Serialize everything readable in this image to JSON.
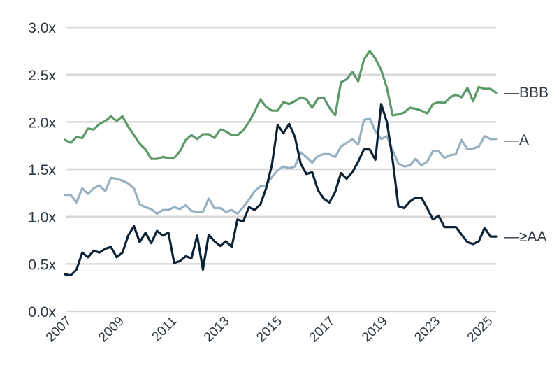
{
  "chart_data": {
    "type": "line",
    "title": "",
    "xlabel": "",
    "ylabel": "",
    "ylim": [
      0,
      3.0
    ],
    "yticks": [
      "0.0x",
      "0.5x",
      "1.0x",
      "1.5x",
      "2.0x",
      "2.5x",
      "3.0x"
    ],
    "ytick_values": [
      0,
      0.5,
      1.0,
      1.5,
      2.0,
      2.5,
      3.0
    ],
    "xticks": [
      "2007",
      "2009",
      "2011",
      "2013",
      "2015",
      "2017",
      "2019",
      "2023",
      "2025"
    ],
    "grid": true,
    "legend_position": "right-inline",
    "frequency": "quarterly",
    "series": [
      {
        "name": "BBB",
        "label": "—BBB",
        "color": "#5b9a68",
        "values": [
          1.81,
          1.78,
          1.84,
          1.83,
          1.93,
          1.92,
          1.98,
          2.01,
          2.06,
          2.01,
          2.06,
          1.95,
          1.86,
          1.77,
          1.71,
          1.61,
          1.61,
          1.63,
          1.62,
          1.62,
          1.69,
          1.81,
          1.86,
          1.82,
          1.87,
          1.87,
          1.83,
          1.92,
          1.9,
          1.86,
          1.86,
          1.91,
          2.0,
          2.11,
          2.24,
          2.16,
          2.12,
          2.12,
          2.21,
          2.19,
          2.22,
          2.26,
          2.24,
          2.15,
          2.25,
          2.26,
          2.15,
          2.07,
          2.42,
          2.45,
          2.53,
          2.43,
          2.66,
          2.75,
          2.67,
          2.55,
          2.36,
          2.07,
          2.08,
          2.1,
          2.15,
          2.14,
          2.12,
          2.09,
          2.19,
          2.21,
          2.2,
          2.26,
          2.29,
          2.26,
          2.36,
          2.22,
          2.37,
          2.35,
          2.35,
          2.31
        ]
      },
      {
        "name": "A",
        "label": "—A",
        "color": "#98b0bf",
        "values": [
          1.23,
          1.23,
          1.15,
          1.3,
          1.24,
          1.3,
          1.33,
          1.27,
          1.41,
          1.4,
          1.38,
          1.35,
          1.3,
          1.13,
          1.1,
          1.08,
          1.03,
          1.07,
          1.07,
          1.1,
          1.08,
          1.12,
          1.06,
          1.05,
          1.05,
          1.19,
          1.09,
          1.09,
          1.05,
          1.07,
          1.03,
          1.1,
          1.18,
          1.27,
          1.32,
          1.33,
          1.42,
          1.49,
          1.53,
          1.51,
          1.53,
          1.68,
          1.63,
          1.57,
          1.64,
          1.66,
          1.66,
          1.63,
          1.74,
          1.78,
          1.82,
          1.76,
          2.02,
          2.04,
          1.9,
          1.82,
          1.85,
          1.7,
          1.56,
          1.53,
          1.54,
          1.61,
          1.54,
          1.58,
          1.69,
          1.69,
          1.62,
          1.65,
          1.66,
          1.81,
          1.71,
          1.72,
          1.74,
          1.85,
          1.82,
          1.82
        ]
      },
      {
        "name": ">=AA",
        "label": "—≥AA",
        "color": "#0e2236",
        "values": [
          0.39,
          0.38,
          0.44,
          0.62,
          0.57,
          0.64,
          0.62,
          0.66,
          0.68,
          0.57,
          0.62,
          0.8,
          0.9,
          0.73,
          0.83,
          0.72,
          0.85,
          0.8,
          0.83,
          0.51,
          0.53,
          0.58,
          0.56,
          0.8,
          0.44,
          0.81,
          0.74,
          0.69,
          0.74,
          0.68,
          0.97,
          0.95,
          1.1,
          1.07,
          1.13,
          1.3,
          1.55,
          1.97,
          1.88,
          1.98,
          1.84,
          1.56,
          1.45,
          1.47,
          1.28,
          1.19,
          1.15,
          1.26,
          1.46,
          1.4,
          1.47,
          1.58,
          1.71,
          1.71,
          1.6,
          2.19,
          2.0,
          1.6,
          1.11,
          1.09,
          1.16,
          1.2,
          1.2,
          1.09,
          0.97,
          1.01,
          0.89,
          0.89,
          0.89,
          0.81,
          0.73,
          0.71,
          0.74,
          0.88,
          0.79,
          0.79
        ]
      }
    ]
  }
}
